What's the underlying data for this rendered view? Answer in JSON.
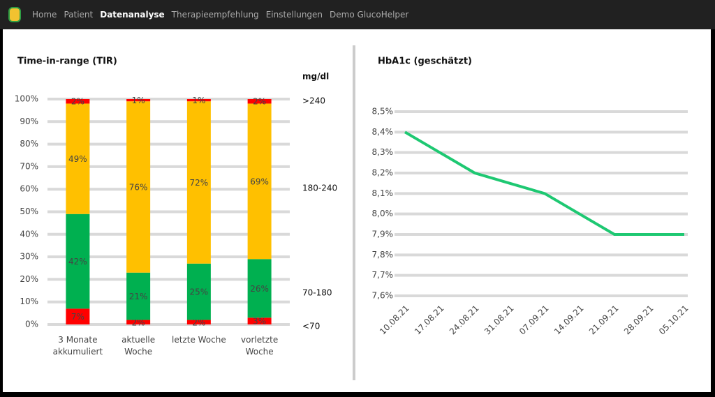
{
  "nav": {
    "items": [
      "Home",
      "Patient",
      "Datenanalyse",
      "Therapieempfehlung",
      "Einstellungen",
      "Demo GlucoHelper"
    ],
    "active": 2
  },
  "chart_data": [
    {
      "type": "stacked-bar",
      "title": "Time-in-range (TIR)",
      "unit_label": "mg/dl",
      "categories": [
        "3 Monate akkumuliert",
        "aktuelle Woche",
        "letzte Woche",
        "vorletzte Woche"
      ],
      "series": [
        {
          "name": "<70",
          "color": "#ff0000",
          "values": [
            7,
            2,
            2,
            3
          ],
          "value_labels": [
            "7%",
            "2%",
            "2%",
            "3%"
          ]
        },
        {
          "name": "70-180",
          "color": "#00b050",
          "values": [
            42,
            21,
            25,
            26
          ],
          "value_labels": [
            "42%",
            "21%",
            "25%",
            "26%"
          ]
        },
        {
          "name": "180-240",
          "color": "#ffc000",
          "values": [
            49,
            76,
            72,
            69
          ],
          "value_labels": [
            "49%",
            "76%",
            "72%",
            "69%"
          ]
        },
        {
          "name": ">240",
          "color": "#ff0000",
          "values": [
            2,
            1,
            1,
            2
          ],
          "value_labels": [
            "2%",
            "1%",
            "1%",
            "2%"
          ]
        }
      ],
      "ylim": [
        0,
        100
      ],
      "yticks": [
        {
          "value": 0,
          "label": "0%"
        },
        {
          "value": 10,
          "label": "10%"
        },
        {
          "value": 20,
          "label": "20%"
        },
        {
          "value": 30,
          "label": "30%"
        },
        {
          "value": 40,
          "label": "40%"
        },
        {
          "value": 50,
          "label": "50%"
        },
        {
          "value": 60,
          "label": "60%"
        },
        {
          "value": 70,
          "label": "70%"
        },
        {
          "value": 80,
          "label": "80%"
        },
        {
          "value": 90,
          "label": "90%"
        },
        {
          "value": 100,
          "label": "100%"
        }
      ],
      "grid": true
    },
    {
      "type": "line",
      "title": "HbA1c (geschätzt)",
      "categories": [
        "10.08.21",
        "17.08.21",
        "24.08.21",
        "31.08.21",
        "07.09.21",
        "14.09.21",
        "21.09.21",
        "28.09.21",
        "05.10.21"
      ],
      "series": [
        {
          "name": "HbA1c",
          "color": "#1ec872",
          "values": [
            8.4,
            8.3,
            8.2,
            8.15,
            8.1,
            8.0,
            7.9,
            7.9,
            7.9
          ]
        }
      ],
      "ylim": [
        7.6,
        8.5
      ],
      "yticks": [
        {
          "value": 7.6,
          "label": "7,6%"
        },
        {
          "value": 7.7,
          "label": "7,7%"
        },
        {
          "value": 7.8,
          "label": "7,8%"
        },
        {
          "value": 7.9,
          "label": "7,9%"
        },
        {
          "value": 8.0,
          "label": "8,0%"
        },
        {
          "value": 8.1,
          "label": "8,1%"
        },
        {
          "value": 8.2,
          "label": "8,2%"
        },
        {
          "value": 8.3,
          "label": "8,3%"
        },
        {
          "value": 8.4,
          "label": "8,4%"
        },
        {
          "value": 8.5,
          "label": "8,5%"
        }
      ],
      "grid": true
    }
  ]
}
